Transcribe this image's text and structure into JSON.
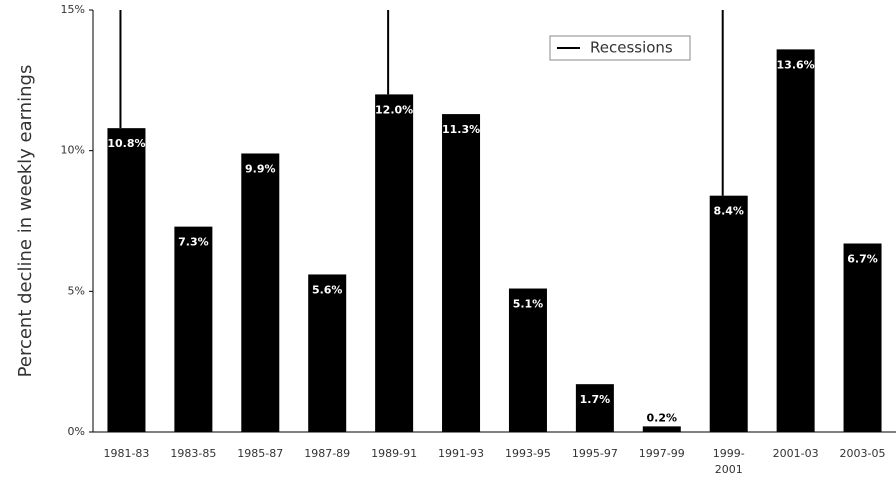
{
  "chart_data": {
    "type": "bar",
    "y_label": "Percent decline in weekly earnings",
    "categories": [
      "1981-83",
      "1983-85",
      "1985-87",
      "1987-89",
      "1989-91",
      "1991-93",
      "1993-95",
      "1995-97",
      "1997-99",
      "1999-2001",
      "2001-03",
      "2003-05"
    ],
    "values": [
      10.8,
      7.3,
      9.9,
      5.6,
      12.0,
      11.3,
      5.1,
      1.7,
      0.2,
      8.4,
      13.6,
      6.7
    ],
    "value_labels": [
      "10.8%",
      "7.3%",
      "9.9%",
      "5.6%",
      "12.0%",
      "11.3%",
      "5.1%",
      "1.7%",
      "0.2%",
      "8.4%",
      "13.6%",
      "6.7%"
    ],
    "color": "#000000",
    "ylim": [
      0,
      15
    ],
    "yticks": [
      {
        "value": 0,
        "label": "0%"
      },
      {
        "value": 5,
        "label": "5%"
      },
      {
        "value": 10,
        "label": "10%"
      },
      {
        "value": 15,
        "label": "15%"
      }
    ],
    "grid": false,
    "recessions": {
      "label": "Recessions",
      "categories": [
        "1981-83",
        "1989-91",
        "1999-2001"
      ]
    }
  }
}
